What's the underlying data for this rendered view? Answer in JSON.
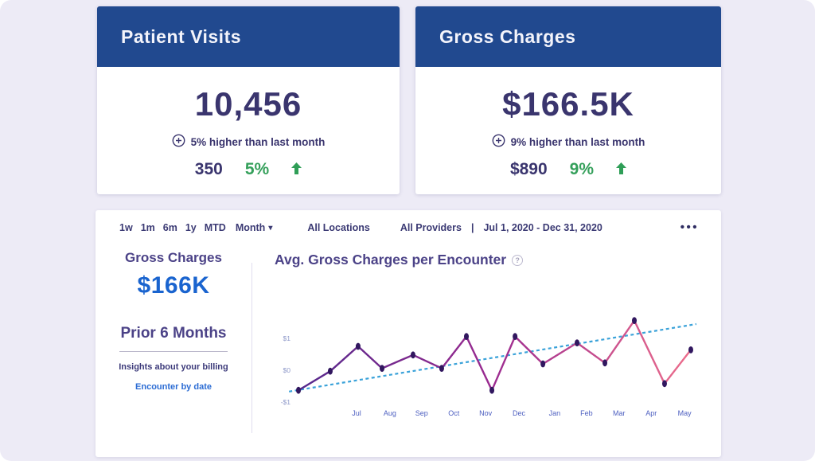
{
  "cards": [
    {
      "title": "Patient Visits",
      "value": "10,456",
      "change_note": "5% higher than last month",
      "stat_value": "350",
      "stat_pct": "5%"
    },
    {
      "title": "Gross Charges",
      "value": "$166.5K",
      "change_note": "9% higher than last month",
      "stat_value": "$890",
      "stat_pct": "9%"
    }
  ],
  "panel": {
    "time_ranges": [
      "1w",
      "1m",
      "6m",
      "1y",
      "MTD"
    ],
    "period_dropdown": "Month",
    "dropdown_caret": "▾",
    "filters": {
      "locations": "All Locations",
      "providers": "All Providers",
      "separator": "|",
      "date_range": "Jul 1, 2020 - Dec 31, 2020"
    },
    "menu_icon": "•••",
    "summary": {
      "title": "Gross Charges",
      "value": "$166K",
      "subtitle": "Prior 6 Months",
      "insights_label": "Insights about your billing",
      "link_label": "Encounter by date"
    },
    "chart_title": "Avg. Gross Charges per Encounter",
    "help_glyph": "?"
  },
  "chart_data": {
    "type": "line",
    "title": "Avg. Gross Charges per Encounter",
    "ylabel": "",
    "xlabel": "",
    "grid": false,
    "legend": false,
    "y_ticks": [
      {
        "label": "$1",
        "value": 1
      },
      {
        "label": "$0",
        "value": 0
      },
      {
        "label": "-$1",
        "value": -1
      }
    ],
    "ylim": [
      -1.4,
      1.9
    ],
    "x_labels": [
      {
        "label": "Jul",
        "n": 0.148
      },
      {
        "label": "Aug",
        "n": 0.233
      },
      {
        "label": "Sep",
        "n": 0.314
      },
      {
        "label": "Oct",
        "n": 0.396
      },
      {
        "label": "Nov",
        "n": 0.477
      },
      {
        "label": "Dec",
        "n": 0.562
      },
      {
        "label": "Jan",
        "n": 0.653
      },
      {
        "label": "Feb",
        "n": 0.734
      },
      {
        "label": "Mar",
        "n": 0.817
      },
      {
        "label": "Apr",
        "n": 0.899
      },
      {
        "label": "May",
        "n": 0.984
      }
    ],
    "series": [
      {
        "name": "avg-gross-charges-per-encounter",
        "points": [
          {
            "n": 0.0,
            "v": -0.63
          },
          {
            "n": 0.081,
            "v": -0.03
          },
          {
            "n": 0.152,
            "v": 0.75
          },
          {
            "n": 0.213,
            "v": 0.06
          },
          {
            "n": 0.292,
            "v": 0.48
          },
          {
            "n": 0.365,
            "v": 0.06
          },
          {
            "n": 0.428,
            "v": 1.06
          },
          {
            "n": 0.493,
            "v": -0.63
          },
          {
            "n": 0.552,
            "v": 1.06
          },
          {
            "n": 0.623,
            "v": 0.2
          },
          {
            "n": 0.71,
            "v": 0.86
          },
          {
            "n": 0.781,
            "v": 0.23
          },
          {
            "n": 0.856,
            "v": 1.56
          },
          {
            "n": 0.933,
            "v": -0.42
          },
          {
            "n": 1.0,
            "v": 0.64
          }
        ]
      }
    ],
    "trend": {
      "name": "trend-line",
      "start": {
        "n": -0.024,
        "v": -0.67
      },
      "end": {
        "n": 1.014,
        "v": 1.45
      }
    },
    "colors": {
      "line_gradient": [
        "#54288c",
        "#9c2b90",
        "#ec6d8c"
      ],
      "marker": "#31175f",
      "trend": "#3aa2d9",
      "tick_text": "#8e98c9",
      "label_text": "#4d5fc0"
    }
  },
  "colors": {
    "header_blue": "#21498f",
    "navy_text": "#3a356e",
    "green": "#35a05b",
    "accent_blue": "#1a64cf",
    "background": "#edebf6"
  }
}
